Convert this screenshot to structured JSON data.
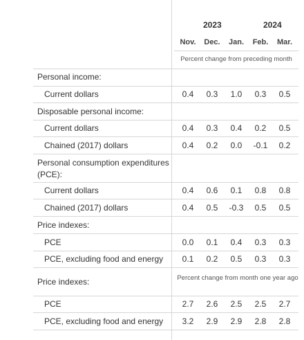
{
  "header": {
    "years": [
      "2023",
      "2024"
    ],
    "months": [
      "Nov.",
      "Dec.",
      "Jan.",
      "Feb.",
      "Mar."
    ],
    "note_top": "Percent change from preceding month",
    "note_bottom": "Percent change from month one year ago"
  },
  "sections": {
    "personal_income": {
      "title": "Personal income:",
      "rows": [
        {
          "label": "Current dollars",
          "values": [
            "0.4",
            "0.3",
            "1.0",
            "0.3",
            "0.5"
          ]
        }
      ]
    },
    "disposable_income": {
      "title": "Disposable personal income:",
      "rows": [
        {
          "label": "Current dollars",
          "values": [
            "0.4",
            "0.3",
            "0.4",
            "0.2",
            "0.5"
          ]
        },
        {
          "label": "Chained (2017) dollars",
          "values": [
            "0.4",
            "0.2",
            "0.0",
            "-0.1",
            "0.2"
          ]
        }
      ]
    },
    "pce": {
      "title_line1": "Personal consumption expenditures",
      "title_line2": "(PCE):",
      "rows": [
        {
          "label": "Current dollars",
          "values": [
            "0.4",
            "0.6",
            "0.1",
            "0.8",
            "0.8"
          ]
        },
        {
          "label": "Chained (2017) dollars",
          "values": [
            "0.4",
            "0.5",
            "-0.3",
            "0.5",
            "0.5"
          ]
        }
      ]
    },
    "price_monthly": {
      "title": "Price indexes:",
      "rows": [
        {
          "label": "PCE",
          "values": [
            "0.0",
            "0.1",
            "0.4",
            "0.3",
            "0.3"
          ]
        },
        {
          "label": "PCE, excluding food and energy",
          "values": [
            "0.1",
            "0.2",
            "0.5",
            "0.3",
            "0.3"
          ]
        }
      ]
    },
    "price_yearly": {
      "title": "Price indexes:",
      "rows": [
        {
          "label": "PCE",
          "values": [
            "2.7",
            "2.6",
            "2.5",
            "2.5",
            "2.7"
          ]
        },
        {
          "label": "PCE, excluding food and energy",
          "values": [
            "3.2",
            "2.9",
            "2.9",
            "2.8",
            "2.8"
          ]
        }
      ]
    }
  }
}
